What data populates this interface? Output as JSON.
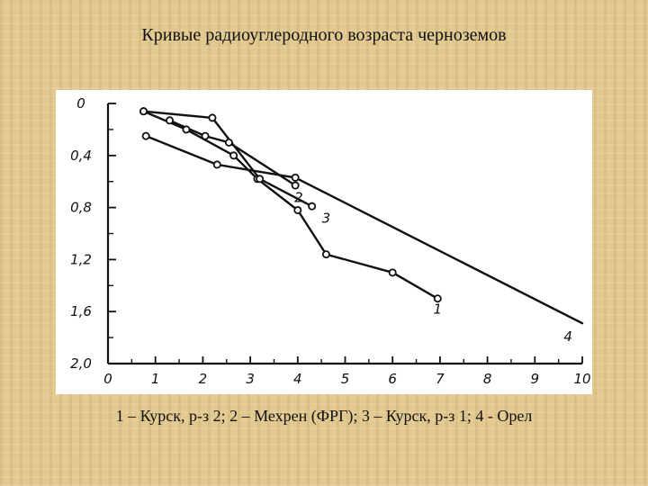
{
  "slide": {
    "title": "Кривые радиоуглеродного возраста черноземов",
    "caption": "1 – Курск, р-з 2; 2 – Мехрен (ФРГ); 3 – Курск, р-з 1; 4 - Орел"
  },
  "chart_data": {
    "type": "line",
    "title": "Кривые радиоуглеродного возраста черноземов",
    "xlabel": "",
    "ylabel": "",
    "xlim": [
      0,
      10
    ],
    "ylim": [
      0,
      2.0
    ],
    "y_inverted": true,
    "grid": false,
    "x_ticks": [
      0,
      1,
      2,
      3,
      4,
      5,
      6,
      7,
      8,
      9,
      10
    ],
    "x_tick_labels": [
      "0",
      "1",
      "2",
      "3",
      "4",
      "5",
      "6",
      "7",
      "8",
      "9",
      "10"
    ],
    "y_ticks": [
      0,
      0.4,
      0.8,
      1.2,
      1.6,
      2.0
    ],
    "y_tick_labels": [
      "0",
      "0,4",
      "0,8",
      "1,2",
      "1,6",
      "2,0"
    ],
    "line_color": "#111111",
    "series": [
      {
        "name": "1",
        "x": [
          0.75,
          1.65,
          2.65,
          3.15,
          4.0,
          4.6,
          6.0,
          6.95
        ],
        "y": [
          0.06,
          0.2,
          0.4,
          0.58,
          0.82,
          1.16,
          1.3,
          1.5
        ]
      },
      {
        "name": "2",
        "x": [
          1.3,
          2.05,
          2.55,
          3.95
        ],
        "y": [
          0.13,
          0.25,
          0.3,
          0.63
        ]
      },
      {
        "name": "3",
        "x": [
          0.75,
          2.2,
          3.2,
          4.3
        ],
        "y": [
          0.06,
          0.11,
          0.58,
          0.79
        ]
      },
      {
        "name": "4",
        "x": [
          0.8,
          2.3,
          3.95,
          10.0
        ],
        "y": [
          0.25,
          0.47,
          0.57,
          1.69
        ]
      }
    ],
    "series_label_positions": [
      {
        "name": "1",
        "at": [
          6.95,
          1.52
        ]
      },
      {
        "name": "2",
        "at": [
          4.02,
          0.66
        ]
      },
      {
        "name": "3",
        "at": [
          4.6,
          0.82
        ]
      },
      {
        "name": "4",
        "at": [
          9.7,
          1.73
        ]
      }
    ]
  }
}
